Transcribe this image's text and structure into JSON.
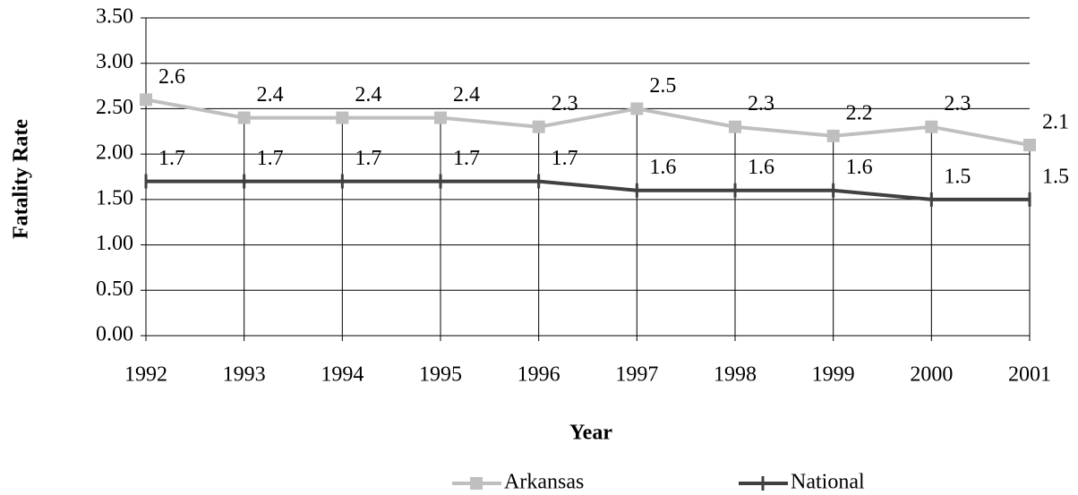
{
  "chart_data": {
    "type": "line",
    "x_label": "Year",
    "y_label": "Fatality Rate",
    "categories": [
      "1992",
      "1993",
      "1994",
      "1995",
      "1996",
      "1997",
      "1998",
      "1999",
      "2000",
      "2001"
    ],
    "series": [
      {
        "name": "Arkansas",
        "color": "#bfbfbf",
        "values": [
          2.6,
          2.4,
          2.4,
          2.4,
          2.3,
          2.5,
          2.3,
          2.2,
          2.3,
          2.1
        ]
      },
      {
        "name": "National",
        "color": "#404040",
        "values": [
          1.7,
          1.7,
          1.7,
          1.7,
          1.7,
          1.6,
          1.6,
          1.6,
          1.5,
          1.5
        ]
      }
    ],
    "ylim": [
      0,
      3.5
    ],
    "yticks": [
      {
        "value": 0,
        "label": "0.00"
      },
      {
        "value": 0.5,
        "label": "0.50"
      },
      {
        "value": 1,
        "label": "1.00"
      },
      {
        "value": 1.5,
        "label": "1.50"
      },
      {
        "value": 2,
        "label": "2.00"
      },
      {
        "value": 2.5,
        "label": "2.50"
      },
      {
        "value": 3,
        "label": "3.00"
      },
      {
        "value": 3.5,
        "label": "3.50"
      }
    ],
    "grid": true,
    "legend": "bottom"
  }
}
